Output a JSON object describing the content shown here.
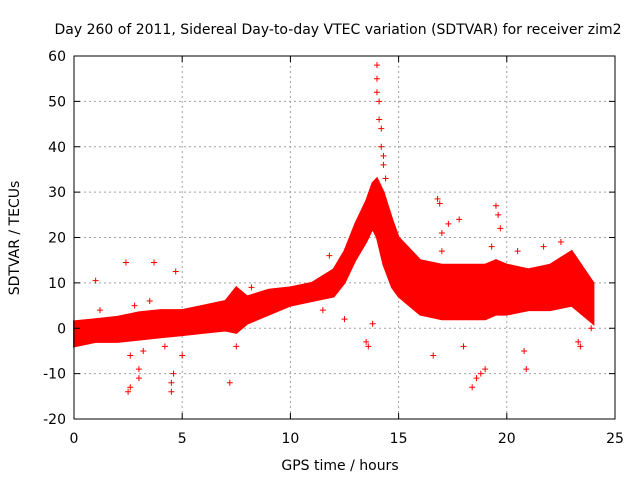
{
  "chart_data": {
    "type": "scatter",
    "title": "Day 260 of 2011, Sidereal Day-to-day VTEC variation (SDTVAR) for receiver zim2",
    "xlabel": "GPS time / hours",
    "ylabel": "SDTVAR / TECUs",
    "xlim": [
      0,
      25
    ],
    "ylim": [
      -20,
      60
    ],
    "xticks": [
      0,
      5,
      10,
      15,
      20,
      25
    ],
    "yticks": [
      -20,
      -10,
      0,
      10,
      20,
      30,
      40,
      50,
      60
    ],
    "grid": true,
    "marker": "+",
    "series_color": "#ff0000",
    "band": {
      "x": [
        0,
        1,
        2,
        3,
        4,
        5,
        6,
        7,
        7.5,
        8,
        9,
        10,
        11,
        12,
        12.5,
        13,
        13.5,
        13.8,
        14,
        14.3,
        14.7,
        15,
        16,
        17,
        18,
        19,
        19.5,
        20,
        21,
        22,
        23,
        24
      ],
      "upper": [
        1.5,
        2,
        2.5,
        3.5,
        4,
        4,
        5,
        6,
        9,
        7,
        8.5,
        9,
        10,
        13,
        17,
        23,
        28,
        32,
        33,
        30,
        24,
        20,
        15,
        14,
        14,
        14,
        15,
        14,
        13,
        14,
        17,
        10
      ],
      "lower": [
        -4,
        -3,
        -3,
        -2.5,
        -2,
        -1.5,
        -1,
        -0.5,
        -1,
        1,
        3,
        5,
        6,
        7,
        10,
        15,
        19,
        22,
        20,
        14,
        9,
        7,
        3,
        2,
        2,
        2,
        3,
        3,
        4,
        4,
        5,
        1
      ]
    },
    "outliers": [
      [
        0.5,
        -3
      ],
      [
        1,
        10.5
      ],
      [
        1.2,
        4
      ],
      [
        2.4,
        14.5
      ],
      [
        2.5,
        -14
      ],
      [
        2.6,
        -13
      ],
      [
        2.6,
        -6
      ],
      [
        2.8,
        5
      ],
      [
        3,
        -9
      ],
      [
        3,
        -11
      ],
      [
        3.2,
        -5
      ],
      [
        3.7,
        14.5
      ],
      [
        3.5,
        6
      ],
      [
        4.5,
        -14
      ],
      [
        4.5,
        -12
      ],
      [
        4.6,
        -10
      ],
      [
        4.7,
        12.5
      ],
      [
        5,
        -6
      ],
      [
        4.2,
        -4
      ],
      [
        7.2,
        -12
      ],
      [
        7.5,
        -4
      ],
      [
        7.8,
        7
      ],
      [
        8.2,
        9
      ],
      [
        11.5,
        4
      ],
      [
        11.8,
        16
      ],
      [
        12.5,
        16
      ],
      [
        12.5,
        2
      ],
      [
        12.2,
        12
      ],
      [
        13,
        19
      ],
      [
        13.5,
        -3
      ],
      [
        13.6,
        -4
      ],
      [
        13.8,
        1
      ],
      [
        14,
        58
      ],
      [
        14,
        55
      ],
      [
        14,
        52
      ],
      [
        14.1,
        50
      ],
      [
        14.1,
        46
      ],
      [
        14.2,
        44
      ],
      [
        14.2,
        40
      ],
      [
        14.3,
        38
      ],
      [
        14.3,
        36
      ],
      [
        14.4,
        33
      ],
      [
        15.3,
        18
      ],
      [
        16.6,
        -6
      ],
      [
        16.8,
        28.5
      ],
      [
        16.9,
        27.5
      ],
      [
        17,
        21
      ],
      [
        17,
        17
      ],
      [
        17.3,
        23
      ],
      [
        17.8,
        24
      ],
      [
        18,
        -4
      ],
      [
        18.4,
        -13
      ],
      [
        18.6,
        -11
      ],
      [
        18.8,
        -10
      ],
      [
        19,
        -9
      ],
      [
        19.5,
        27
      ],
      [
        19.6,
        25
      ],
      [
        19.7,
        22
      ],
      [
        19.3,
        18
      ],
      [
        20.5,
        17
      ],
      [
        20.8,
        -5
      ],
      [
        20.9,
        -9
      ],
      [
        21.7,
        18
      ],
      [
        22.2,
        14
      ],
      [
        22.5,
        19
      ],
      [
        23,
        14
      ],
      [
        23.3,
        -3
      ],
      [
        23.4,
        -4
      ],
      [
        23.9,
        0
      ],
      [
        23.8,
        9
      ]
    ]
  }
}
